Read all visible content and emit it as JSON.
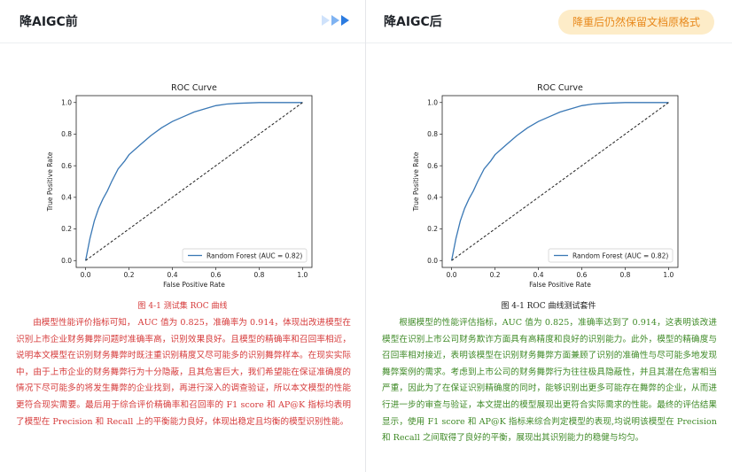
{
  "left_panel": {
    "title": "降AIGC前",
    "caption": "图 4-1 测试集 ROC 曲线",
    "paragraph": "由模型性能评价指标可知， AUC 值为 0.825，准确率为 0.914，体现出改进模型在识别上市企业财务舞弊问题时准确率高，识别效果良好。且模型的精确率和召回率相近，说明本文模型在识别财务舞弊时既注重识别精度又尽可能多的识别舞弊样本。在现实实际中，由于上市企业的财务舞弊行为十分隐蔽，且其危害巨大，我们希望能在保证准确度的情况下尽可能多的将发生舞弊的企业找到，再进行深入的调查验证，所以本文模型的性能更符合现实需要。最后用于综合评价精确率和召回率的 F1 score 和 AP@K 指标均表明了模型在 Precision 和 Recall 上的平衡能力良好，体现出稳定且均衡的模型识别性能。"
  },
  "right_panel": {
    "title": "降AIGC后",
    "badge": "降重后仍然保留文档原格式",
    "caption": "图 4-1 ROC 曲线测试套件",
    "paragraph": "根据模型的性能评估指标，AUC 值为 0.825，准确率达到了 0.914，这表明该改进模型在识别上市公司财务欺诈方面具有高精度和良好的识别能力。此外，模型的精确度与召回率相对接近，表明该模型在识别财务舞弊方面兼顾了识别的准确性与尽可能多地发现舞弊案例的需求。考虑到上市公司的财务舞弊行为往往极具隐蔽性，并且其潜在危害相当严重，因此为了在保证识别精确度的同时，能够识别出更多可能存在舞弊的企业，从而进行进一步的审查与验证，本文提出的模型展现出更符合实际需求的性能。最终的评估结果显示，使用 F1 score 和 AP@K 指标来综合判定模型的表现,均说明该模型在 Precision 和 Recall 之间取得了良好的平衡，展现出其识别能力的稳健与均匀。"
  },
  "chart_data": [
    {
      "type": "line",
      "title": "ROC Curve",
      "xlabel": "False Positive Rate",
      "ylabel": "True Positive Rate",
      "xlim": [
        0,
        1
      ],
      "ylim": [
        0,
        1
      ],
      "x_ticks": [
        "0.0",
        "0.2",
        "0.4",
        "0.6",
        "0.8",
        "1.0"
      ],
      "y_ticks": [
        "0.0",
        "0.2",
        "0.4",
        "0.6",
        "0.8",
        "1.0"
      ],
      "legend": "lower-right",
      "grid": false,
      "series": [
        {
          "name": "Random Forest (AUC = 0.82)",
          "color": "#3a78b5",
          "x": [
            0,
            0.02,
            0.04,
            0.06,
            0.08,
            0.1,
            0.12,
            0.15,
            0.18,
            0.2,
            0.25,
            0.3,
            0.35,
            0.4,
            0.45,
            0.5,
            0.55,
            0.6,
            0.65,
            0.7,
            0.8,
            0.9,
            1.0
          ],
          "y": [
            0,
            0.14,
            0.25,
            0.33,
            0.39,
            0.44,
            0.5,
            0.58,
            0.63,
            0.67,
            0.73,
            0.79,
            0.84,
            0.88,
            0.91,
            0.94,
            0.96,
            0.98,
            0.99,
            0.995,
            1.0,
            1.0,
            1.0
          ]
        },
        {
          "name": "",
          "color": "#222222",
          "style": "dashed",
          "x": [
            0,
            1
          ],
          "y": [
            0,
            1
          ]
        }
      ]
    },
    {
      "type": "line",
      "title": "ROC Curve",
      "xlabel": "False Positive Rate",
      "ylabel": "True Positive Rate",
      "xlim": [
        0,
        1
      ],
      "ylim": [
        0,
        1
      ],
      "x_ticks": [
        "0.0",
        "0.2",
        "0.4",
        "0.6",
        "0.8",
        "1.0"
      ],
      "y_ticks": [
        "0.0",
        "0.2",
        "0.4",
        "0.6",
        "0.8",
        "1.0"
      ],
      "legend": "lower-right",
      "grid": false,
      "series": [
        {
          "name": "Random Forest (AUC = 0.82)",
          "color": "#3a78b5",
          "x": [
            0,
            0.02,
            0.04,
            0.06,
            0.08,
            0.1,
            0.12,
            0.15,
            0.18,
            0.2,
            0.25,
            0.3,
            0.35,
            0.4,
            0.45,
            0.5,
            0.55,
            0.6,
            0.65,
            0.7,
            0.8,
            0.9,
            1.0
          ],
          "y": [
            0,
            0.14,
            0.25,
            0.33,
            0.39,
            0.44,
            0.5,
            0.58,
            0.63,
            0.67,
            0.73,
            0.79,
            0.84,
            0.88,
            0.91,
            0.94,
            0.96,
            0.98,
            0.99,
            0.995,
            1.0,
            1.0,
            1.0
          ]
        },
        {
          "name": "",
          "color": "#222222",
          "style": "dashed",
          "x": [
            0,
            1
          ],
          "y": [
            0,
            1
          ]
        }
      ]
    }
  ]
}
